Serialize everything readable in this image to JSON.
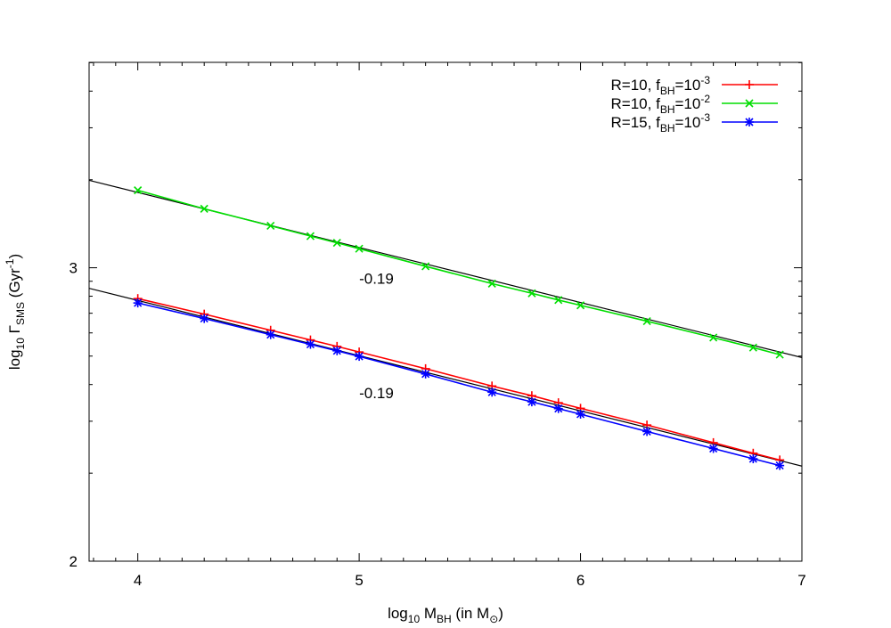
{
  "chart_data": {
    "type": "line",
    "xlabel": "log10 M_BH (in M_sun)",
    "ylabel": "log10 Γ_SMS (Gyr^-1)",
    "xlim": [
      3.78,
      7.0
    ],
    "ylim": [
      2.0,
      3.7
    ],
    "x_ticks": [
      4,
      5,
      6,
      7
    ],
    "y_ticks": [
      2,
      3
    ],
    "x_tick_labels": [
      "4",
      "5",
      "6",
      "7"
    ],
    "y_tick_labels": [
      "2",
      "3"
    ],
    "x_minor_step": 0.1,
    "grid": false,
    "legend_position": "top-right",
    "series": [
      {
        "name": "R=10, f_BH=10^-3",
        "color": "#ff0000",
        "marker": "plus",
        "x": [
          4.0,
          4.3,
          4.6,
          4.78,
          4.9,
          5.0,
          5.3,
          5.6,
          5.78,
          5.9,
          6.0,
          6.3,
          6.6,
          6.78,
          6.9
        ],
        "y": [
          2.895,
          2.842,
          2.787,
          2.754,
          2.732,
          2.713,
          2.656,
          2.597,
          2.564,
          2.54,
          2.521,
          2.464,
          2.404,
          2.368,
          2.345
        ]
      },
      {
        "name": "R=10, f_BH=10^-2",
        "color": "#00dd00",
        "marker": "cross",
        "x": [
          4.0,
          4.3,
          4.6,
          4.78,
          4.9,
          5.0,
          5.3,
          5.6,
          5.78,
          5.9,
          6.0,
          6.3,
          6.6,
          6.78,
          6.9
        ],
        "y": [
          3.264,
          3.201,
          3.143,
          3.108,
          3.085,
          3.065,
          3.005,
          2.946,
          2.913,
          2.89,
          2.872,
          2.818,
          2.762,
          2.728,
          2.704
        ]
      },
      {
        "name": "R=15, f_BH=10^-3",
        "color": "#0000ff",
        "marker": "star",
        "x": [
          4.0,
          4.3,
          4.6,
          4.78,
          4.9,
          5.0,
          5.3,
          5.6,
          5.78,
          5.9,
          6.0,
          6.3,
          6.6,
          6.78,
          6.9
        ],
        "y": [
          2.88,
          2.827,
          2.772,
          2.739,
          2.717,
          2.698,
          2.638,
          2.576,
          2.543,
          2.52,
          2.501,
          2.442,
          2.384,
          2.349,
          2.326
        ]
      }
    ],
    "fits": [
      {
        "slope": -0.19,
        "x0": 3.78,
        "y0": 3.298,
        "x1": 7.0,
        "y1": 2.694,
        "color": "#000000"
      },
      {
        "slope": -0.19,
        "x0": 3.78,
        "y0": 2.93,
        "x1": 7.0,
        "y1": 2.324,
        "color": "#000000"
      }
    ],
    "annotations": [
      {
        "text": "-0.19",
        "x": 5.0,
        "y": 2.945
      },
      {
        "text": "-0.19",
        "x": 5.0,
        "y": 2.555
      }
    ]
  }
}
